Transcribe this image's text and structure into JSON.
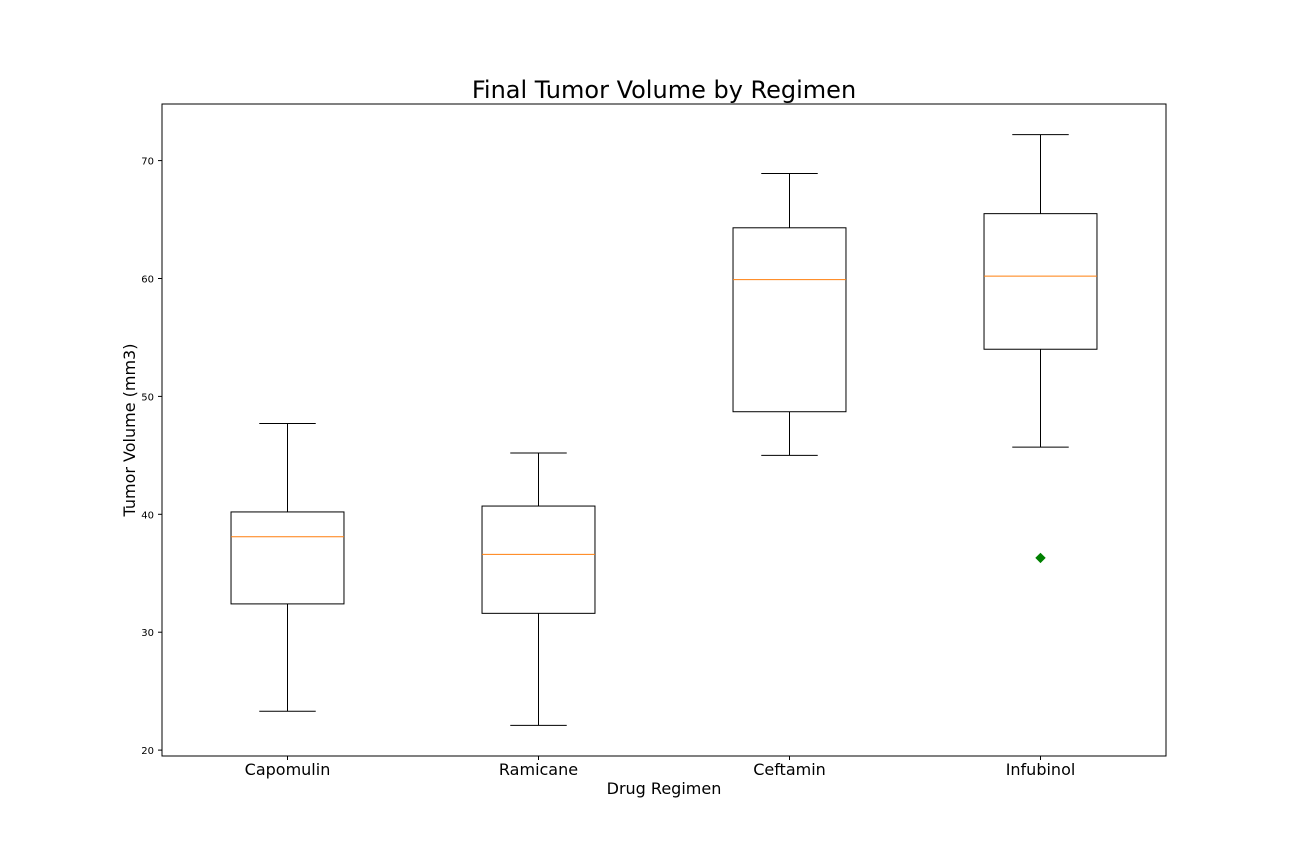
{
  "chart_data": {
    "type": "box",
    "title": "Final Tumor Volume by Regimen",
    "xlabel": "Drug Regimen",
    "ylabel": "Tumor Volume (mm3)",
    "ylim": [
      19.5,
      74.8
    ],
    "yticks": [
      20,
      30,
      40,
      50,
      60,
      70
    ],
    "grid": false,
    "categories": [
      "Capomulin",
      "Ramicane",
      "Ceftamin",
      "Infubinol"
    ],
    "boxes": [
      {
        "name": "Capomulin",
        "whislo": 23.3,
        "q1": 32.4,
        "med": 38.1,
        "q3": 40.2,
        "whishi": 47.7,
        "fliers": []
      },
      {
        "name": "Ramicane",
        "whislo": 22.1,
        "q1": 31.6,
        "med": 36.6,
        "q3": 40.7,
        "whishi": 45.2,
        "fliers": []
      },
      {
        "name": "Ceftamin",
        "whislo": 45.0,
        "q1": 48.7,
        "med": 59.9,
        "q3": 64.3,
        "whishi": 68.9,
        "fliers": []
      },
      {
        "name": "Infubinol",
        "whislo": 45.7,
        "q1": 54.0,
        "med": 60.2,
        "q3": 65.5,
        "whishi": 72.2,
        "fliers": [
          36.3
        ]
      }
    ],
    "colors": {
      "box": "#000000",
      "median": "#ff7f0e",
      "flier": "#008000"
    }
  }
}
